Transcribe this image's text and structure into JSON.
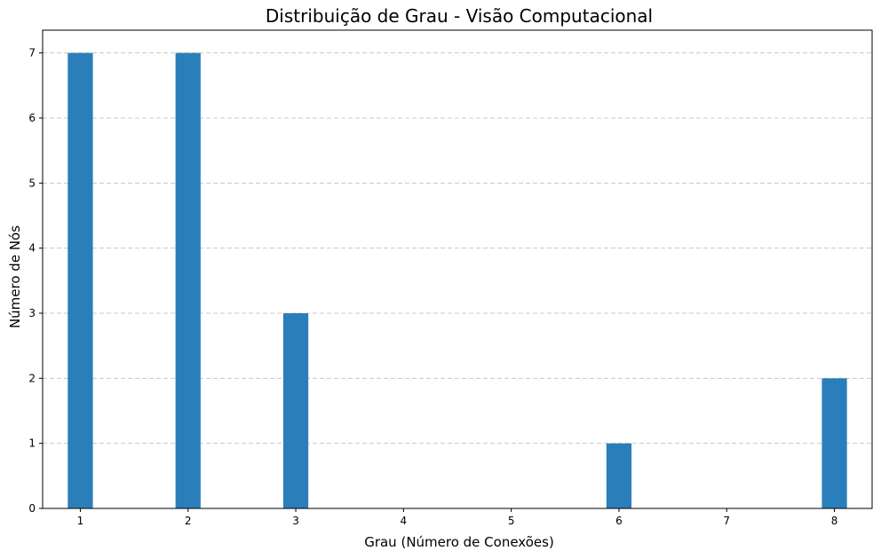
{
  "chart_data": {
    "type": "bar",
    "title": "Distribuição de Grau - Visão Computacional",
    "xlabel": "Grau (Número de Conexões)",
    "ylabel": "Número de Nós",
    "x": [
      1,
      2,
      3,
      6,
      8
    ],
    "values": [
      7,
      7,
      3,
      1,
      2
    ],
    "bin_width": 0.233,
    "xlim": [
      0.65,
      8.35
    ],
    "ylim": [
      0,
      7.35
    ],
    "xticks": [
      1,
      2,
      3,
      4,
      5,
      6,
      7,
      8
    ],
    "yticks": [
      0,
      1,
      2,
      3,
      4,
      5,
      6,
      7
    ],
    "grid": "y-dashed",
    "bar_color": "#2a7fba",
    "grid_color": "#c8c8c8"
  }
}
